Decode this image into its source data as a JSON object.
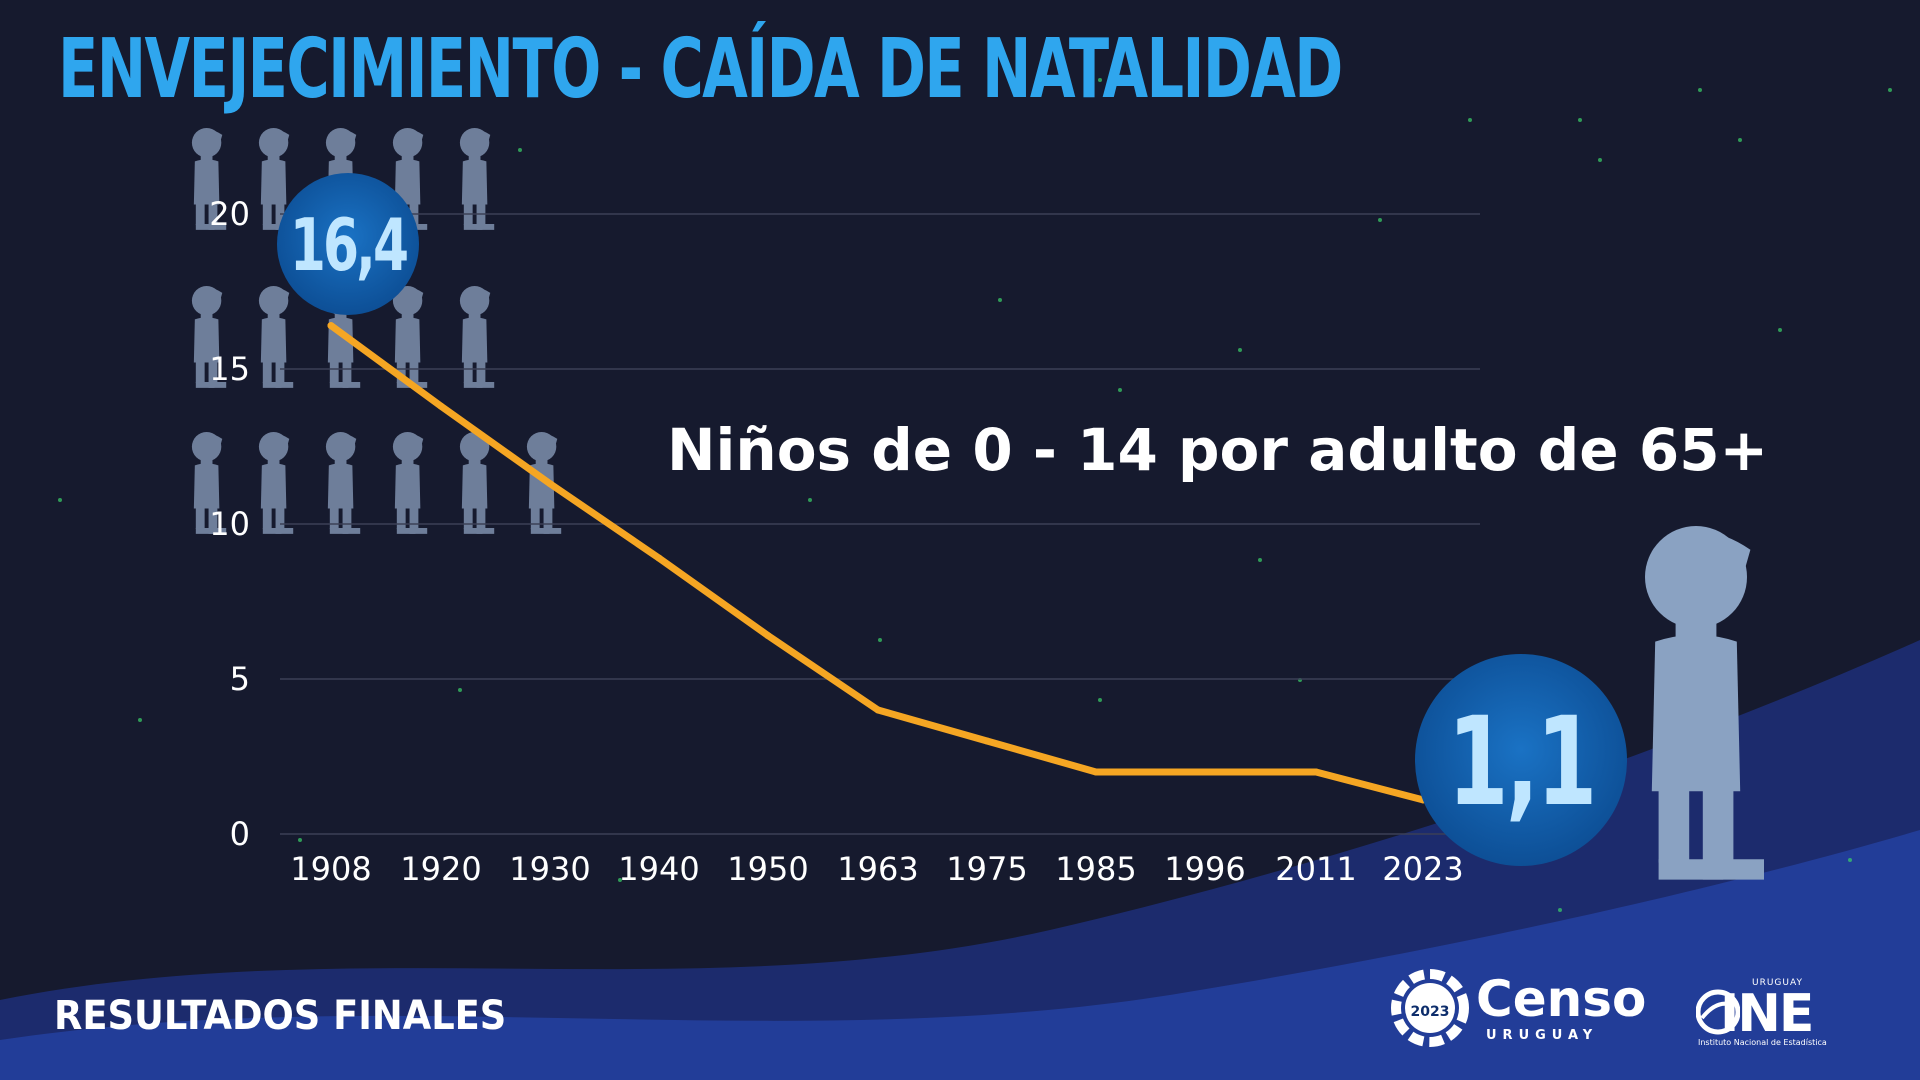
{
  "title": "ENVEJECIMIENTO - CAÍDA DE NATALIDAD",
  "footer": {
    "label": "RESULTADOS FINALES"
  },
  "logos": {
    "censo_badge": "2023",
    "censo_word": "Censo",
    "censo_sub": "URUGUAY",
    "ine_top": "URUGUAY",
    "ine_word": "INE",
    "ine_sub": "Instituto Nacional de Estadística"
  },
  "colors": {
    "background": "#161a2e",
    "title": "#2fa6ee",
    "line": "#f5a623",
    "bubble": "#0d4f96",
    "bubble_text": "#bfe6ff",
    "figure": "#7889a6",
    "figure_big": "#8aa2c2",
    "grid": "#3b4056",
    "axis_text": "#ffffff"
  },
  "icons": {
    "people_pictogram": "child-figure-icon",
    "big_figure": "child-figure-icon"
  },
  "chart_data": {
    "type": "line",
    "title": "Niños de 0 - 14 por adulto de 65+",
    "xlabel": "",
    "ylabel": "",
    "categories": [
      "1908",
      "1920",
      "1930",
      "1940",
      "1950",
      "1963",
      "1975",
      "1985",
      "1996",
      "2011",
      "2023"
    ],
    "series": [
      {
        "values": [
          16.4,
          13.8,
          11.3,
          8.9,
          6.4,
          4.0,
          3.0,
          2.0,
          2.0,
          2.0,
          1.1
        ]
      }
    ],
    "yticks": [
      "0",
      "5",
      "10",
      "15",
      "20"
    ],
    "ylim": [
      0,
      20
    ],
    "grid": true,
    "legend": "none",
    "highlights": [
      {
        "index": 0,
        "label": "16,4"
      },
      {
        "index": 10,
        "label": "1,1"
      }
    ]
  }
}
